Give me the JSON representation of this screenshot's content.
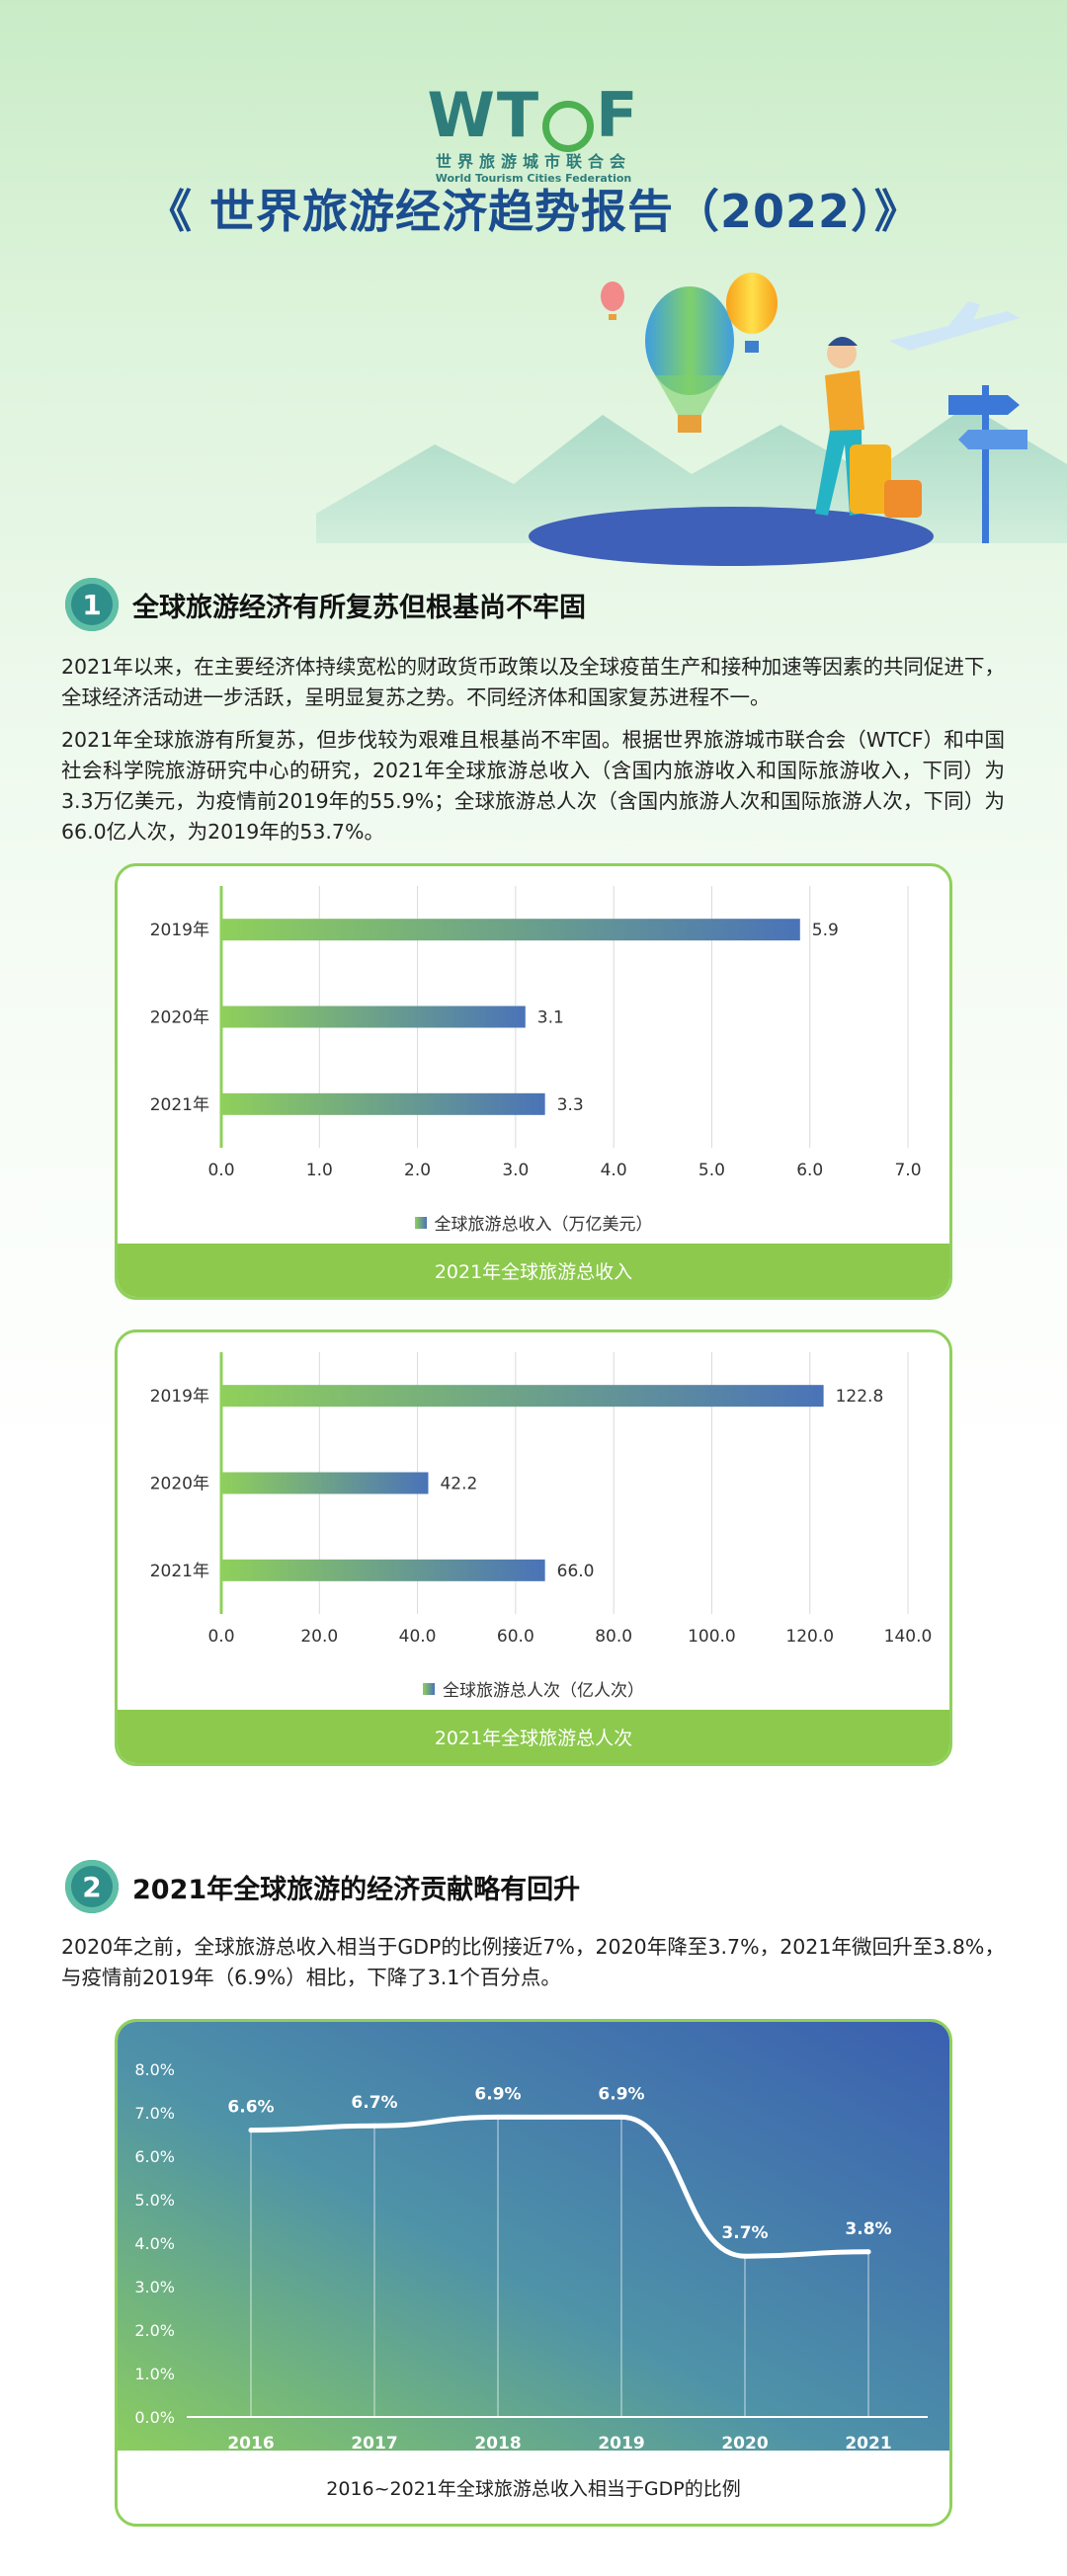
{
  "header": {
    "logo_text": "WTCF",
    "logo_cn": "世界旅游城市联合会",
    "logo_en": "World Tourism Cities Federation",
    "title": "《 世界旅游经济趋势报告（2022）》"
  },
  "section1": {
    "num": "1",
    "title": "全球旅游经济有所复苏但根基尚不牢固",
    "para1": "2021年以来，在主要经济体持续宽松的财政货币政策以及全球疫苗生产和接种加速等因素的共同促进下，全球经济活动进一步活跃，呈明显复苏之势。不同经济体和国家复苏进程不一。",
    "para2": "2021年全球旅游有所复苏，但步伐较为艰难且根基尚不牢固。根据世界旅游城市联合会（WTCF）和中国社会科学院旅游研究中心的研究，2021年全球旅游总收入（含国内旅游收入和国际旅游收入，下同）为3.3万亿美元，为疫情前2019年的55.9%；全球旅游总人次（含国内旅游人次和国际旅游人次，下同）为66.0亿人次，为2019年的53.7%。"
  },
  "section2": {
    "num": "2",
    "title": "2021年全球旅游的经济贡献略有回升",
    "para": "2020年之前，全球旅游总收入相当于GDP的比例接近7%，2020年降至3.7%，2021年微回升至3.8%，与疫情前2019年（6.9%）相比，下降了3.1个百分点。"
  },
  "colors": {
    "bar_start": "#8fd05b",
    "bar_end": "#4a73b8",
    "card_border": "#8fd05b",
    "footer_bg": "#8cc94c",
    "title": "#1b4d8f"
  },
  "chart_data": [
    {
      "type": "bar",
      "orientation": "horizontal",
      "categories": [
        "2019年",
        "2020年",
        "2021年"
      ],
      "values": [
        5.9,
        3.1,
        3.3
      ],
      "value_labels": [
        "5.9",
        "3.1",
        "3.3"
      ],
      "xlim": [
        0,
        7
      ],
      "x_ticks": [
        "0.0",
        "1.0",
        "2.0",
        "3.0",
        "4.0",
        "5.0",
        "6.0",
        "7.0"
      ],
      "legend": "全球旅游总收入（万亿美元）",
      "caption": "2021年全球旅游总收入",
      "grid": true
    },
    {
      "type": "bar",
      "orientation": "horizontal",
      "categories": [
        "2019年",
        "2020年",
        "2021年"
      ],
      "values": [
        122.8,
        42.2,
        66.0
      ],
      "value_labels": [
        "122.8",
        "42.2",
        "66.0"
      ],
      "xlim": [
        0,
        140
      ],
      "x_ticks": [
        "0.0",
        "20.0",
        "40.0",
        "60.0",
        "80.0",
        "100.0",
        "120.0",
        "140.0"
      ],
      "legend": "全球旅游总人次（亿人次）",
      "caption": "2021年全球旅游总人次",
      "grid": true
    },
    {
      "type": "line",
      "categories": [
        "2016",
        "2017",
        "2018",
        "2019",
        "2020",
        "2021"
      ],
      "values": [
        6.6,
        6.7,
        6.9,
        6.9,
        3.7,
        3.8
      ],
      "value_labels": [
        "6.6%",
        "6.7%",
        "6.9%",
        "6.9%",
        "3.7%",
        "3.8%"
      ],
      "ylim": [
        0,
        8
      ],
      "y_ticks": [
        "0.0%",
        "1.0%",
        "2.0%",
        "3.0%",
        "4.0%",
        "5.0%",
        "6.0%",
        "7.0%",
        "8.0%"
      ],
      "caption": "2016~2021年全球旅游总收入相当于GDP的比例",
      "grid": false
    }
  ]
}
